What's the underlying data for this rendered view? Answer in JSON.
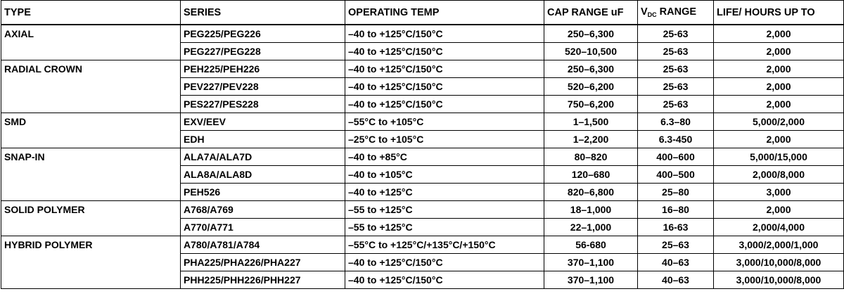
{
  "header": [
    "TYPE",
    "SERIES",
    "OPERATING TEMP",
    "CAP RANGE uF",
    {
      "main": "V",
      "sub": "DC",
      "tail": "RANGE"
    },
    "LIFE/ HOURS UP TO"
  ],
  "groups": [
    {
      "type": "AXIAL",
      "rows": [
        [
          "PEG225/PEG226",
          "–40 to +125°C/150°C",
          "250–6,300",
          "25-63",
          "2,000"
        ],
        [
          "PEG227/PEG228",
          "–40 to +125°C/150°C",
          "520–10,500",
          "25-63",
          "2,000"
        ]
      ]
    },
    {
      "type": "RADIAL CROWN",
      "rows": [
        [
          "PEH225/PEH226",
          "–40 to +125°C/150°C",
          "250–6,300",
          "25-63",
          "2,000"
        ],
        [
          "PEV227/PEV228",
          "–40 to +125°C/150°C",
          "520–6,200",
          "25-63",
          "2,000"
        ],
        [
          "PES227/PES228",
          "–40 to +125°C/150°C",
          "750–6,200",
          "25-63",
          "2,000"
        ]
      ]
    },
    {
      "type": "SMD",
      "rows": [
        [
          "EXV/EEV",
          "–55°C to +105°C",
          "1–1,500",
          "6.3–80",
          "5,000/2,000"
        ],
        [
          "EDH",
          "–25°C to +105°C",
          "1–2,200",
          "6.3-450",
          "2,000"
        ]
      ]
    },
    {
      "type": "SNAP-IN",
      "rows": [
        [
          "ALA7A/ALA7D",
          "–40 to +85°C",
          "80–820",
          "400–600",
          "5,000/15,000"
        ],
        [
          "ALA8A/ALA8D",
          "–40 to +105°C",
          "120–680",
          "400–500",
          "2,000/8,000"
        ],
        [
          "PEH526",
          "–40 to +125°C",
          "820–6,800",
          "25–80",
          "3,000"
        ]
      ]
    },
    {
      "type": "SOLID POLYMER",
      "rows": [
        [
          "A768/A769",
          "–55 to +125°C",
          "18–1,000",
          "16–80",
          "2,000"
        ],
        [
          "A770/A771",
          "–55 to +125°C",
          "22–1,000",
          "16-63",
          "2,000/4,000"
        ]
      ]
    },
    {
      "type": "HYBRID POLYMER",
      "rows": [
        [
          "A780/A781/A784",
          "–55°C to +125°C/+135°C/+150°C",
          "56-680",
          "25–63",
          "3,000/2,000/1,000"
        ],
        [
          "PHA225/PHA226/PHA227",
          "–40 to +125°C/150°C",
          "370–1,100",
          "40–63",
          "3,000/10,000/8,000"
        ],
        [
          "PHH225/PHH226/PHH227",
          "–40 to +125°C/150°C",
          "370–1,100",
          "40–63",
          "3,000/10,000/8,000"
        ]
      ]
    }
  ]
}
